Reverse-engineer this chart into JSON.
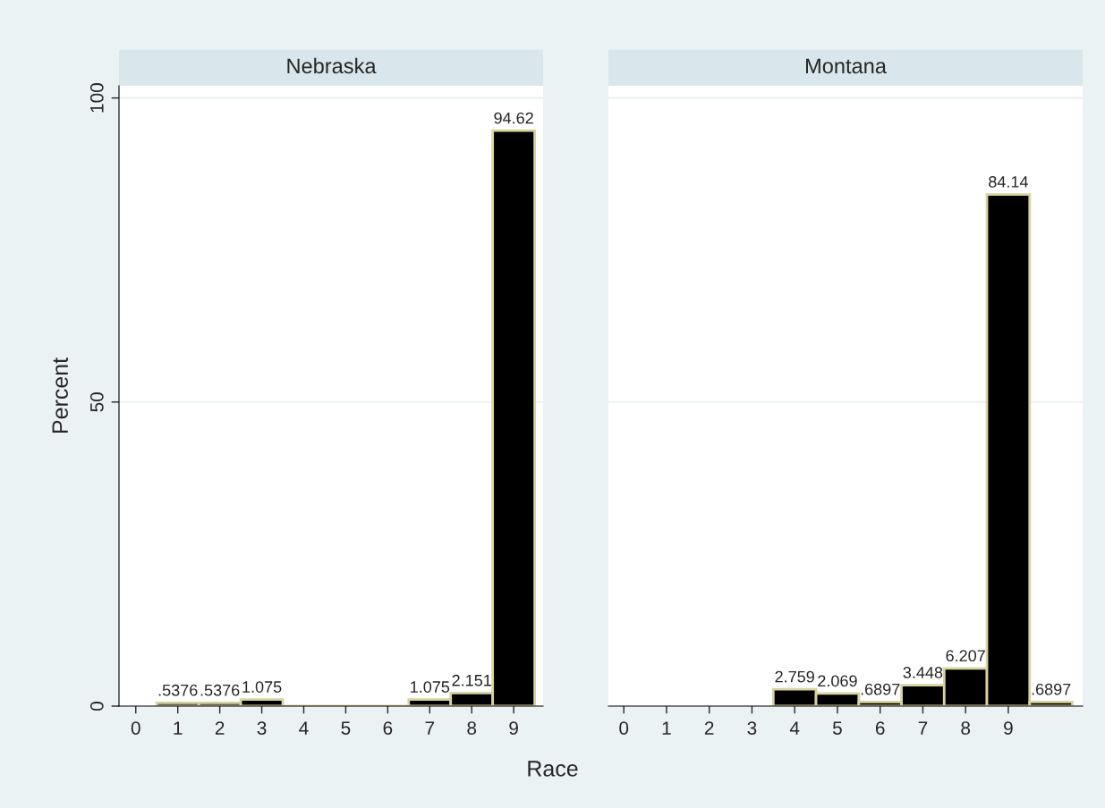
{
  "chart_data": [
    {
      "type": "histogram",
      "title": "Nebraska",
      "xlabel": "Race",
      "ylabel": "Percent",
      "bins": [
        0.5,
        1.5,
        2.5,
        3.5,
        4.5,
        5.5,
        6.5,
        7.5,
        8.5,
        9.5
      ],
      "values": [
        0.5376,
        0.5376,
        1.075,
        0,
        0,
        0,
        1.075,
        2.151,
        94.62
      ],
      "value_labels": [
        ".5376",
        ".5376",
        "1.075",
        null,
        null,
        null,
        "1.075",
        "2.151",
        "94.62"
      ],
      "color": "#000000",
      "xlim": [
        -0.4,
        9.7
      ],
      "xticks": [
        0,
        1,
        2,
        3,
        4,
        5,
        6,
        7,
        8,
        9
      ],
      "ylim": [
        0,
        102
      ],
      "yticks": [
        0,
        50,
        100
      ],
      "grid": "y"
    },
    {
      "type": "histogram",
      "title": "Montana",
      "bins": [
        3.5,
        4.5,
        5.5,
        6.5,
        7.5,
        8.5,
        9.5,
        10.5
      ],
      "values": [
        2.759,
        2.069,
        0.6897,
        3.448,
        6.207,
        84.14,
        0.6897
      ],
      "value_labels": [
        "2.759",
        "2.069",
        ".6897",
        "3.448",
        "6.207",
        "84.14",
        ".6897"
      ],
      "color": "#000000",
      "xlim": [
        -0.36,
        10.74
      ],
      "xticks": [
        0,
        1,
        2,
        3,
        4,
        5,
        6,
        7,
        8,
        9
      ],
      "ylim": [
        0,
        102
      ],
      "yticks": [
        0,
        50,
        100
      ],
      "grid": "y",
      "tick_labels": "x"
    }
  ]
}
